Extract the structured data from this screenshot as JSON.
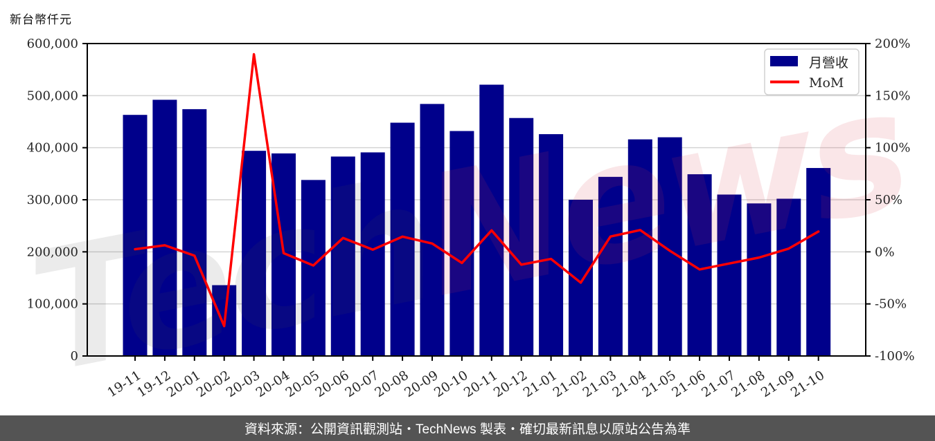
{
  "chart": {
    "unit_label": "新台幣仟元",
    "legend": {
      "items": [
        {
          "label": "月營收",
          "swatch": "bar",
          "color": "#00008b"
        },
        {
          "label": "MoM",
          "swatch": "line",
          "color": "#ff0000"
        }
      ]
    },
    "watermark": {
      "part1": "Tech",
      "part2": "News",
      "part1_color": "rgba(70,70,70,0.11)",
      "part2_color": "rgba(214,48,64,0.12)"
    },
    "colors": {
      "bar": "#00008b",
      "line": "#ff0000",
      "grid": "#d4d4d4",
      "spine": "#000000",
      "tick_text": "#262626"
    }
  },
  "chart_data": {
    "type": "bar",
    "title": "新台幣仟元",
    "categories": [
      "19-11",
      "19-12",
      "20-01",
      "20-02",
      "20-03",
      "20-04",
      "20-05",
      "20-06",
      "20-07",
      "20-08",
      "20-09",
      "20-10",
      "20-11",
      "20-12",
      "21-01",
      "21-02",
      "21-03",
      "21-04",
      "21-05",
      "21-06",
      "21-07",
      "21-08",
      "21-09",
      "21-10"
    ],
    "series": [
      {
        "name": "月營收",
        "type": "bar",
        "axis": "left",
        "color": "#00008b",
        "unit": "新台幣仟元",
        "values": [
          463000,
          492000,
          474000,
          136000,
          394000,
          389000,
          338000,
          383000,
          391000,
          448000,
          484000,
          432000,
          521000,
          457000,
          426000,
          300000,
          344000,
          416000,
          420000,
          349000,
          310000,
          293000,
          302000,
          361000
        ]
      },
      {
        "name": "MoM",
        "type": "line",
        "axis": "right",
        "color": "#ff0000",
        "unit": "%",
        "values": [
          2.5,
          6.3,
          -3.7,
          -71.3,
          189.7,
          -1.3,
          -13.1,
          13.3,
          2.1,
          14.6,
          8.0,
          -10.7,
          20.6,
          -12.3,
          -6.8,
          -29.6,
          14.7,
          20.9,
          1.0,
          -16.9,
          -11.2,
          -5.5,
          3.1,
          19.5
        ]
      }
    ],
    "left_axis": {
      "min": 0,
      "max": 600000,
      "tick_step": 100000,
      "tick_labels": [
        "0",
        "100,000",
        "200,000",
        "300,000",
        "400,000",
        "500,000",
        "600,000"
      ]
    },
    "right_axis": {
      "min": -100,
      "max": 200,
      "tick_step": 50,
      "tick_labels": [
        "-100%",
        "-50%",
        "0%",
        "50%",
        "100%",
        "150%",
        "200%"
      ]
    },
    "grid": "horizontal",
    "legend_position": "top-right"
  },
  "footer": {
    "text": "資料來源：公開資訊觀測站・TechNews 製表・確切最新訊息以原站公告為準",
    "background": "#545454",
    "color": "#ffffff"
  }
}
